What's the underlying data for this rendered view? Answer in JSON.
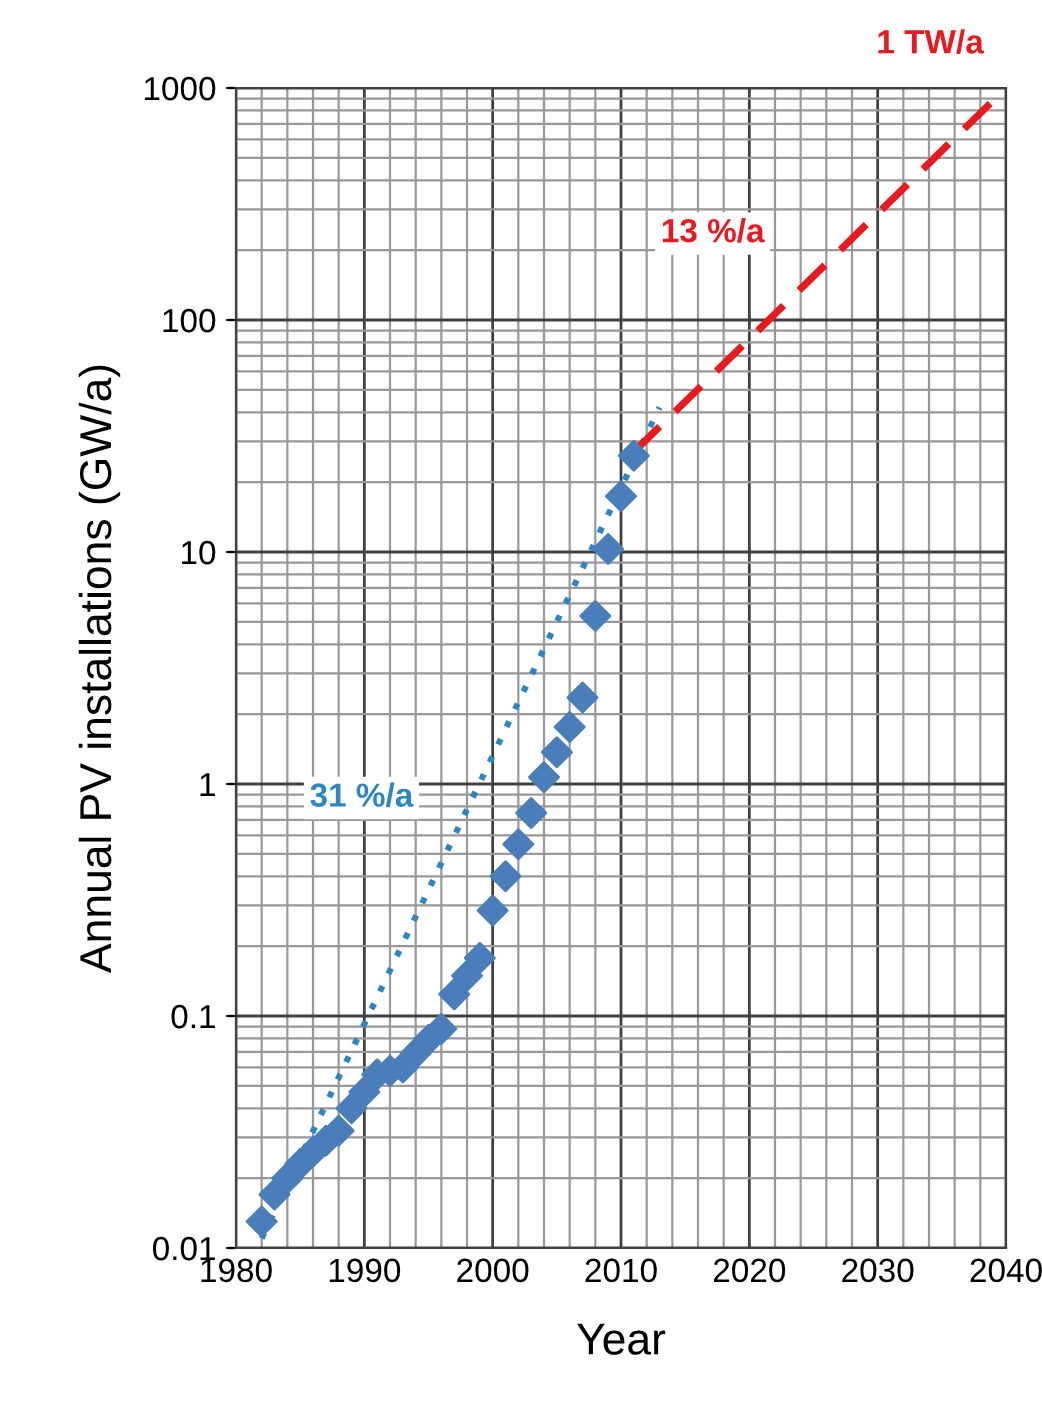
{
  "chart_data": {
    "type": "scatter",
    "xlabel": "Year",
    "ylabel": "Annual PV installations (GW/a)",
    "log": "y",
    "grid": true,
    "legend": false,
    "xlim": [
      1980,
      2040
    ],
    "xticks": [
      1980,
      1990,
      2000,
      2010,
      2020,
      2030,
      2040
    ],
    "ylim": [
      0.01,
      1000
    ],
    "yticks": [
      0.01,
      0.1,
      1,
      10,
      100,
      1000
    ],
    "series": [
      {
        "color": "#4a7ebb",
        "marker": "diamond",
        "x": [
          1982,
          1983,
          1984,
          1985,
          1986,
          1987,
          1988,
          1989,
          1990,
          1991,
          1992,
          1993,
          1994,
          1995,
          1996,
          1997,
          1998,
          1999,
          2000,
          2001,
          2002,
          2003,
          2004,
          2005,
          2006,
          2007,
          2008,
          2009,
          2010,
          2011
        ],
        "values": [
          0.013,
          0.017,
          0.02,
          0.023,
          0.026,
          0.029,
          0.032,
          0.04,
          0.047,
          0.056,
          0.058,
          0.06,
          0.069,
          0.079,
          0.088,
          0.124,
          0.149,
          0.178,
          0.285,
          0.4,
          0.55,
          0.75,
          1.07,
          1.37,
          1.76,
          2.36,
          5.3,
          10.3,
          17.4,
          26
        ]
      },
      {
        "type": "line",
        "name": "31 %/a",
        "color": "#2e86c1",
        "line_style": "dotted",
        "x": [
          1982,
          2013
        ],
        "values": [
          0.011,
          42
        ]
      },
      {
        "type": "line",
        "name": "13 %/a",
        "color": "#e8191f",
        "line_style": "dashed",
        "x": [
          2011,
          2040
        ],
        "values": [
          27,
          1000
        ]
      }
    ],
    "annotations": [
      {
        "text": "1 TW/a",
        "x": 2040,
        "y": 1000
      }
    ]
  }
}
